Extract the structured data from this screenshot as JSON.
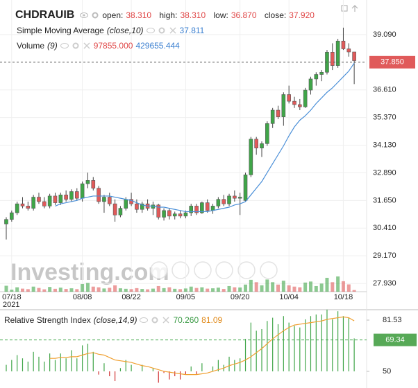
{
  "header": {
    "symbol": "CHDRAUIB",
    "fields": [
      {
        "label": "open:",
        "value": "38.310"
      },
      {
        "label": "high:",
        "value": "38.310"
      },
      {
        "label": "low:",
        "value": "36.870"
      },
      {
        "label": "close:",
        "value": "37.920"
      }
    ]
  },
  "chart_data": [
    {
      "type": "candlestick",
      "categories": [
        null,
        "07/18",
        null,
        null,
        null,
        null,
        null,
        null,
        null,
        null,
        null,
        null,
        null,
        null,
        "08/08",
        null,
        null,
        null,
        null,
        null,
        null,
        null,
        null,
        "08/22",
        null,
        null,
        null,
        null,
        null,
        null,
        null,
        null,
        null,
        "09/05",
        null,
        null,
        null,
        null,
        null,
        null,
        null,
        null,
        null,
        "09/20",
        null,
        null,
        null,
        null,
        null,
        null,
        null,
        null,
        "10/04",
        null,
        null,
        null,
        null,
        null,
        null,
        null,
        null,
        null,
        "10/18",
        null,
        null
      ],
      "year": "2021",
      "open": [
        30.6,
        30.8,
        31.1,
        31.5,
        31.4,
        31.3,
        31.8,
        31.6,
        31.4,
        31.85,
        31.55,
        31.9,
        31.7,
        32.05,
        31.75,
        32.4,
        32.55,
        32.2,
        31.6,
        31.8,
        31.5,
        31.0,
        31.3,
        31.7,
        31.5,
        31.25,
        31.5,
        31.3,
        31.45,
        30.9,
        31.2,
        30.95,
        31.05,
        30.95,
        31.1,
        31.4,
        31.1,
        31.55,
        31.2,
        31.4,
        31.7,
        31.5,
        31.85,
        31.75,
        31.65,
        32.8,
        34.4,
        34.0,
        34.2,
        35.1,
        35.7,
        35.4,
        36.4,
        36.1,
        35.95,
        35.85,
        36.6,
        37.1,
        37.3,
        37.4,
        38.3,
        37.7,
        38.8,
        38.45,
        38.31
      ],
      "high": [
        30.9,
        31.2,
        31.6,
        31.8,
        31.6,
        31.9,
        32.0,
        31.8,
        31.95,
        32.0,
        32.0,
        32.1,
        32.15,
        32.2,
        32.5,
        32.9,
        32.7,
        32.3,
        31.9,
        32.0,
        31.7,
        31.4,
        31.8,
        32.0,
        31.7,
        31.6,
        31.7,
        31.6,
        31.5,
        31.3,
        31.3,
        31.15,
        31.2,
        31.2,
        31.5,
        31.5,
        31.6,
        31.7,
        31.5,
        31.8,
        31.9,
        31.95,
        32.1,
        32.0,
        32.9,
        34.5,
        34.5,
        34.3,
        35.2,
        35.8,
        35.9,
        36.5,
        36.8,
        36.3,
        36.2,
        36.7,
        37.2,
        37.4,
        37.5,
        38.4,
        38.7,
        38.9,
        39.4,
        38.7,
        38.31
      ],
      "low": [
        29.9,
        30.7,
        31.0,
        31.3,
        31.2,
        31.2,
        31.5,
        31.3,
        31.3,
        31.45,
        31.45,
        31.6,
        31.6,
        31.65,
        31.6,
        32.2,
        32.1,
        31.5,
        31.1,
        31.4,
        30.7,
        30.9,
        31.2,
        31.4,
        31.1,
        31.1,
        31.2,
        31.0,
        30.8,
        30.75,
        30.8,
        30.8,
        30.85,
        30.85,
        30.95,
        31.0,
        31.05,
        31.1,
        31.05,
        31.3,
        31.4,
        31.4,
        31.6,
        31.0,
        31.6,
        32.7,
        33.7,
        33.6,
        34.1,
        34.9,
        35.3,
        35.0,
        36.0,
        35.8,
        35.7,
        35.8,
        36.4,
        36.8,
        37.0,
        37.3,
        37.5,
        37.6,
        38.4,
        38.1,
        36.87
      ],
      "close": [
        30.8,
        31.1,
        31.5,
        31.4,
        31.3,
        31.8,
        31.6,
        31.4,
        31.85,
        31.55,
        31.9,
        31.7,
        32.05,
        31.75,
        32.4,
        32.55,
        32.2,
        31.6,
        31.8,
        31.5,
        31.0,
        31.3,
        31.7,
        31.5,
        31.25,
        31.5,
        31.3,
        31.45,
        30.9,
        31.2,
        30.95,
        31.05,
        30.95,
        31.1,
        31.4,
        31.1,
        31.55,
        31.2,
        31.4,
        31.7,
        31.5,
        31.85,
        31.75,
        31.8,
        32.8,
        34.4,
        34.0,
        34.2,
        35.1,
        35.7,
        35.4,
        36.4,
        36.1,
        35.95,
        35.85,
        36.6,
        37.1,
        37.3,
        37.4,
        38.3,
        37.7,
        38.8,
        38.45,
        38.31,
        37.92
      ],
      "color_up": "#3fa548",
      "color_down": "#e05a5a",
      "sma": {
        "name": "Simple Moving Average",
        "params": "(close,10)",
        "value_label": "37.811",
        "color": "#4a8fd8",
        "values": [
          null,
          null,
          null,
          null,
          null,
          null,
          null,
          null,
          null,
          31.4,
          31.5,
          31.55,
          31.6,
          31.65,
          31.75,
          31.8,
          31.85,
          31.85,
          31.85,
          31.85,
          31.8,
          31.75,
          31.7,
          31.65,
          31.55,
          31.45,
          31.4,
          31.4,
          31.35,
          31.35,
          31.3,
          31.25,
          31.2,
          31.15,
          31.15,
          31.15,
          31.15,
          31.15,
          31.2,
          31.25,
          31.3,
          31.35,
          31.45,
          31.5,
          31.6,
          31.9,
          32.2,
          32.5,
          32.9,
          33.3,
          33.7,
          34.1,
          34.55,
          34.95,
          35.25,
          35.45,
          35.7,
          36.0,
          36.25,
          36.5,
          36.7,
          36.95,
          37.2,
          37.45,
          37.811
        ]
      },
      "volume": {
        "name": "Volume",
        "params": "(9)",
        "label": "97855.000",
        "ma_label": "429655.444",
        "ma_color": "#4a8fd8",
        "values": [
          350000,
          120000,
          260000,
          180000,
          150000,
          300000,
          220000,
          140000,
          280000,
          170000,
          240000,
          160000,
          200000,
          150000,
          450000,
          520000,
          300000,
          260000,
          190000,
          230000,
          380000,
          200000,
          170000,
          150000,
          210000,
          160000,
          140000,
          180000,
          330000,
          210000,
          260000,
          170000,
          150000,
          190000,
          300000,
          220000,
          260000,
          180000,
          200000,
          240000,
          160000,
          330000,
          260000,
          250000,
          420000,
          700000,
          560000,
          380000,
          720000,
          560000,
          420000,
          650000,
          380000,
          300000,
          260000,
          540000,
          600000,
          330000,
          480000,
          820000,
          560000,
          900000,
          620000,
          430000,
          97855
        ]
      },
      "ylim": [
        27.56,
        40.64
      ],
      "yticks": [
        {
          "value": 39.09,
          "label": "39.090"
        },
        {
          "value": 36.61,
          "label": "36.610"
        },
        {
          "value": 35.37,
          "label": "35.370"
        },
        {
          "value": 34.13,
          "label": "34.130"
        },
        {
          "value": 32.89,
          "label": "32.890"
        },
        {
          "value": 31.65,
          "label": "31.650"
        },
        {
          "value": 30.41,
          "label": "30.410"
        },
        {
          "value": 29.17,
          "label": "29.170"
        },
        {
          "value": 27.93,
          "label": "27.930"
        }
      ],
      "price_line": {
        "value": 37.85,
        "label": "37.850",
        "color": "#e05a5a"
      },
      "grid": true,
      "watermark": "Investing.com"
    },
    {
      "type": "rsi",
      "name": "Relative Strength Index",
      "params": "(close,14,9)",
      "value_label": "70.260",
      "signal_label": "81.09",
      "color_up": "#3fa548",
      "color_down": "#d03030",
      "signal_color": "#f0a030",
      "values": [
        54,
        57,
        60,
        58,
        56,
        62,
        59,
        56,
        61,
        57,
        61,
        58,
        63,
        58,
        66,
        67,
        62,
        48,
        55,
        47,
        44,
        52,
        57,
        54,
        50,
        54,
        50,
        52,
        43,
        49,
        45,
        47,
        45,
        48,
        53,
        48,
        55,
        50,
        53,
        57,
        54,
        59,
        57,
        58,
        70,
        80,
        75,
        76,
        81,
        83,
        79,
        84,
        80,
        78,
        77,
        82,
        84,
        85,
        85,
        88,
        82,
        87,
        84,
        83,
        70.26
      ],
      "signal": [
        null,
        null,
        null,
        null,
        null,
        null,
        null,
        null,
        58,
        58,
        58.5,
        58.5,
        59,
        59,
        60,
        61,
        61.5,
        60.5,
        60,
        58.5,
        57,
        56.5,
        56,
        55.5,
        54.5,
        53.5,
        53,
        52,
        51,
        50,
        49.5,
        49,
        48.5,
        48,
        48,
        48,
        48.5,
        49,
        50,
        51,
        52,
        53.5,
        54.5,
        55.5,
        57,
        59,
        61.5,
        64,
        67,
        70,
        72.5,
        75,
        77,
        78.5,
        79,
        79.5,
        80,
        80.5,
        81,
        82,
        82.5,
        83,
        83.5,
        83,
        81.09
      ],
      "ylim": [
        40.6,
        85.8
      ],
      "yticks": [
        81.53,
        50
      ],
      "marker": 69.34
    }
  ]
}
